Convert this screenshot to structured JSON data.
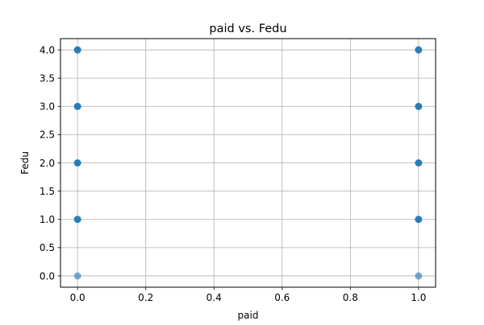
{
  "chart_data": {
    "type": "scatter",
    "title": "paid vs. Fedu",
    "xlabel": "paid",
    "ylabel": "Fedu",
    "xlim": [
      -0.05,
      1.05
    ],
    "ylim": [
      -0.2,
      4.2
    ],
    "xticks": [
      0.0,
      0.2,
      0.4,
      0.6,
      0.8,
      1.0
    ],
    "xtick_labels": [
      "0.0",
      "0.2",
      "0.4",
      "0.6",
      "0.8",
      "1.0"
    ],
    "yticks": [
      0.0,
      0.5,
      1.0,
      1.5,
      2.0,
      2.5,
      3.0,
      3.5,
      4.0
    ],
    "ytick_labels": [
      "0.0",
      "0.5",
      "1.0",
      "1.5",
      "2.0",
      "2.5",
      "3.0",
      "3.5",
      "4.0"
    ],
    "grid": true,
    "marker_color": "#1f77b4",
    "points": [
      {
        "x": 0,
        "y": 0,
        "density": "light"
      },
      {
        "x": 0,
        "y": 1,
        "density": "dense"
      },
      {
        "x": 0,
        "y": 2,
        "density": "dense"
      },
      {
        "x": 0,
        "y": 3,
        "density": "dense"
      },
      {
        "x": 0,
        "y": 4,
        "density": "dense"
      },
      {
        "x": 1,
        "y": 0,
        "density": "light"
      },
      {
        "x": 1,
        "y": 1,
        "density": "dense"
      },
      {
        "x": 1,
        "y": 2,
        "density": "dense"
      },
      {
        "x": 1,
        "y": 3,
        "density": "dense"
      },
      {
        "x": 1,
        "y": 4,
        "density": "dense"
      }
    ]
  }
}
